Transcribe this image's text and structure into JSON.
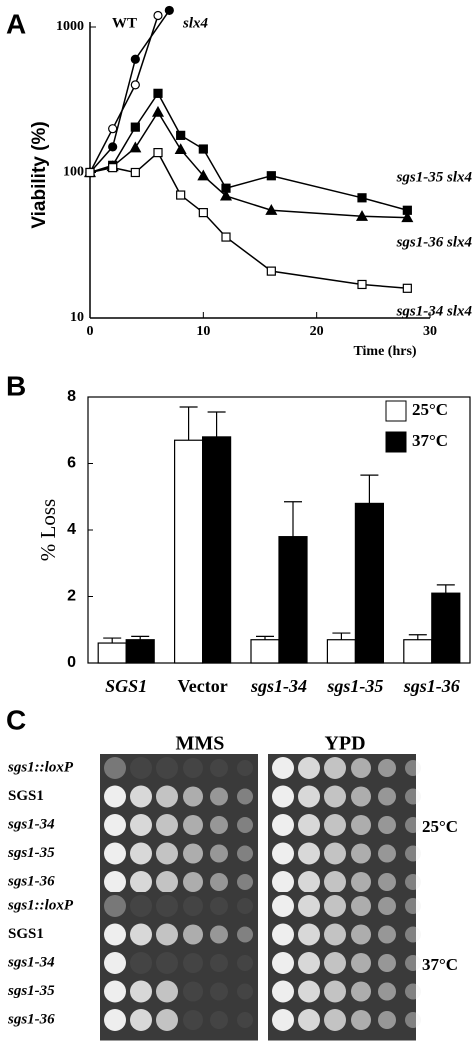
{
  "chart_data": [
    {
      "type": "line",
      "panel_label": "A",
      "ylabel": "Viability (%)",
      "xlabel": "Time (hrs)",
      "yscale": "log",
      "xlim": [
        0,
        30
      ],
      "xticks": [
        0,
        10,
        20,
        30
      ],
      "ylim": [
        10,
        1000
      ],
      "yticks": [
        10,
        100,
        1000
      ],
      "series": [
        {
          "name": "WT",
          "color": "#000000",
          "marker": "circle",
          "filled": false,
          "x": [
            0,
            2,
            4,
            6
          ],
          "values": [
            100,
            200,
            400,
            1200
          ]
        },
        {
          "name": "slx4",
          "color": "#000000",
          "marker": "circle",
          "filled": true,
          "x": [
            0,
            2,
            4,
            7
          ],
          "values": [
            100,
            150,
            600,
            1300
          ]
        },
        {
          "name": "sgs1-35 slx4",
          "color": "#000000",
          "marker": "square",
          "filled": true,
          "x": [
            0,
            2,
            4,
            6,
            8,
            10,
            12,
            16,
            24,
            28
          ],
          "values": [
            100,
            112,
            205,
            350,
            180,
            145,
            78,
            95,
            67,
            55
          ]
        },
        {
          "name": "sgs1-36 slx4",
          "color": "#000000",
          "marker": "triangle",
          "filled": true,
          "x": [
            0,
            2,
            4,
            6,
            8,
            10,
            12,
            16,
            24,
            28
          ],
          "values": [
            100,
            110,
            148,
            260,
            144,
            95,
            69,
            55,
            50,
            49
          ]
        },
        {
          "name": "sgs1-34 slx4",
          "color": "#000000",
          "marker": "square",
          "filled": false,
          "x": [
            0,
            2,
            4,
            6,
            8,
            10,
            12,
            16,
            24,
            28
          ],
          "values": [
            100,
            108,
            100,
            137,
            70,
            53,
            36,
            21,
            17,
            16
          ]
        }
      ]
    },
    {
      "type": "bar",
      "panel_label": "B",
      "ylabel": "% Loss",
      "ylim": [
        0,
        8
      ],
      "yticks": [
        0,
        2,
        4,
        6,
        8
      ],
      "categories": [
        "SGS1",
        "Vector",
        "sgs1-34",
        "sgs1-35",
        "sgs1-36"
      ],
      "series": [
        {
          "name": "25°C",
          "color": "#ffffff",
          "values": [
            0.6,
            6.7,
            0.7,
            0.7,
            0.7
          ],
          "errors": [
            0.15,
            1.0,
            0.1,
            0.2,
            0.15
          ]
        },
        {
          "name": "37°C",
          "color": "#000000",
          "values": [
            0.7,
            6.8,
            3.8,
            4.8,
            2.1
          ],
          "errors": [
            0.1,
            0.75,
            1.05,
            0.85,
            0.25
          ]
        }
      ]
    }
  ],
  "plates": {
    "panel_label": "C",
    "columns": [
      "MMS",
      "YPD"
    ],
    "blocks": [
      {
        "temperature": "25°C",
        "strains": [
          "sgs1::loxP",
          "SGS1",
          "sgs1-34",
          "sgs1-35",
          "sgs1-36"
        ]
      },
      {
        "temperature": "37°C",
        "strains": [
          "sgs1::loxP",
          "SGS1",
          "sgs1-34",
          "sgs1-35",
          "sgs1-36"
        ]
      }
    ]
  }
}
